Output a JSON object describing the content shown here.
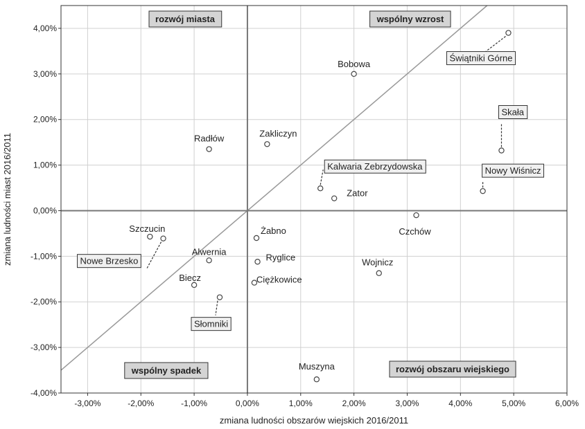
{
  "chart_data": {
    "type": "scatter",
    "xlabel": "zmiana ludności obszarów wiejskich 2016/2011",
    "ylabel": "zmiana ludności miast 2016/2011",
    "xlim": [
      -3.5,
      6.0
    ],
    "ylim": [
      -4.0,
      4.5
    ],
    "x_ticks": [
      "-3,00%",
      "-2,00%",
      "-1,00%",
      "0,00%",
      "1,00%",
      "2,00%",
      "3,00%",
      "4,00%",
      "5,00%",
      "6,00%"
    ],
    "y_ticks": [
      "-4,00%",
      "-3,00%",
      "-2,00%",
      "-1,00%",
      "0,00%",
      "1,00%",
      "2,00%",
      "3,00%",
      "4,00%"
    ],
    "grid": true,
    "reference_line": "y = x",
    "quadrant_labels": {
      "top_left": "rozwój miasta",
      "top_right": "wspólny wzrost",
      "bottom_left": "wspólny spadek",
      "bottom_right": "rozwój obszaru wiejskiego"
    },
    "points": [
      {
        "label": "Bobowa",
        "x": 2.0,
        "y": 3.0
      },
      {
        "label": "Świątniki Górne",
        "x": 4.9,
        "y": 3.9
      },
      {
        "label": "Skała",
        "x": 4.77,
        "y": 1.32
      },
      {
        "label": "Nowy Wiśnicz",
        "x": 4.42,
        "y": 0.43
      },
      {
        "label": "Radłów",
        "x": -0.72,
        "y": 1.35
      },
      {
        "label": "Zakliczyn",
        "x": 0.37,
        "y": 1.46
      },
      {
        "label": "Kalwaria Zebrzydowska",
        "x": 1.37,
        "y": 0.49
      },
      {
        "label": "Zator",
        "x": 1.63,
        "y": 0.27
      },
      {
        "label": "Czchów",
        "x": 3.17,
        "y": -0.1
      },
      {
        "label": "Szczucin",
        "x": -1.83,
        "y": -0.57
      },
      {
        "label": "Nowe Brzesko",
        "x": -1.58,
        "y": -0.61
      },
      {
        "label": "Żabno",
        "x": 0.17,
        "y": -0.6
      },
      {
        "label": "Alwernia",
        "x": -0.72,
        "y": -1.09
      },
      {
        "label": "Ryglice",
        "x": 0.19,
        "y": -1.12
      },
      {
        "label": "Wojnicz",
        "x": 2.47,
        "y": -1.37
      },
      {
        "label": "Biecz",
        "x": -1.0,
        "y": -1.63
      },
      {
        "label": "Ciężkowice",
        "x": 0.13,
        "y": -1.58
      },
      {
        "label": "Słomniki",
        "x": -0.52,
        "y": -1.9
      },
      {
        "label": "Muszyna",
        "x": 1.3,
        "y": -3.7
      }
    ]
  }
}
